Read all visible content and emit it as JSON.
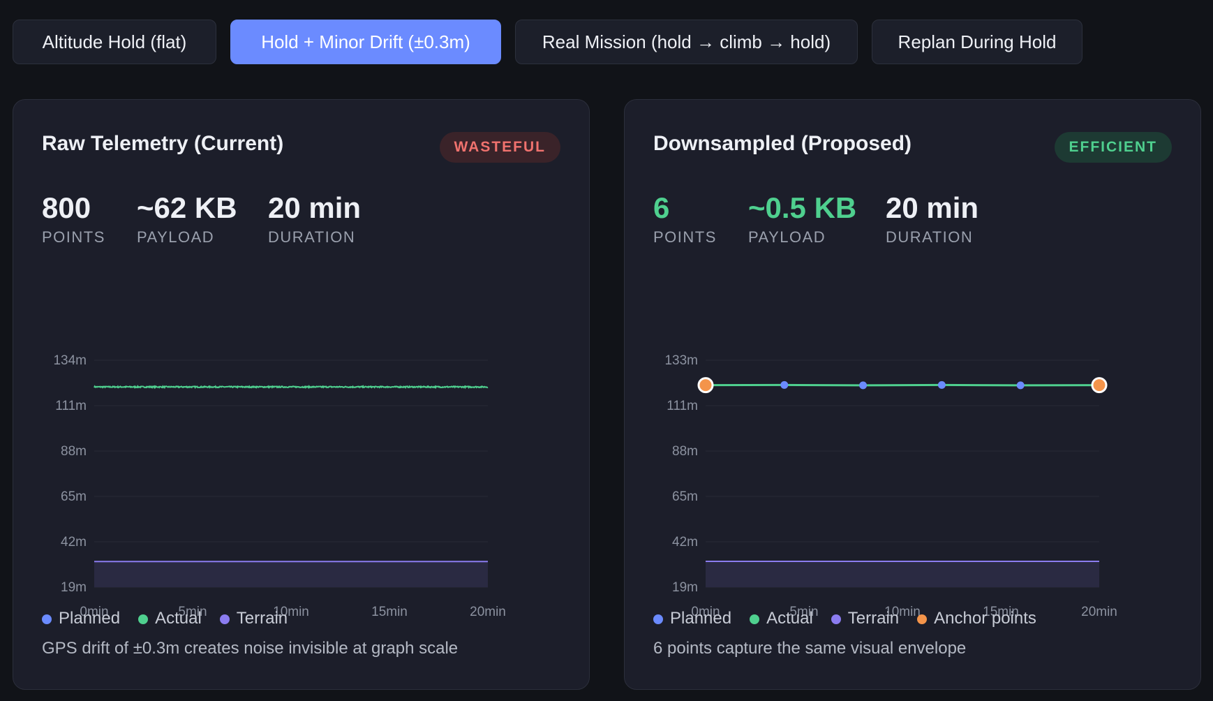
{
  "tabs": [
    {
      "label": "Altitude Hold (flat)",
      "active": false
    },
    {
      "label": "Hold + Minor Drift (±0.3m)",
      "active": true
    },
    {
      "label": "Real Mission (hold → climb → hold)",
      "active": false
    },
    {
      "label": "Replan During Hold",
      "active": false
    }
  ],
  "colors": {
    "planned": "#6b8bff",
    "actual": "#4fd08f",
    "terrain": "#8b7cf0",
    "anchor": "#f4944a",
    "wasteful": "#f0726e",
    "efficient": "#4fd08f"
  },
  "panels": {
    "raw": {
      "title": "Raw Telemetry (Current)",
      "badge": "WASTEFUL",
      "stats": [
        {
          "value": "800",
          "label": "POINTS"
        },
        {
          "value": "~62 KB",
          "label": "PAYLOAD"
        },
        {
          "value": "20 min",
          "label": "DURATION"
        }
      ],
      "legend": [
        {
          "label": "Planned",
          "color": "planned"
        },
        {
          "label": "Actual",
          "color": "actual"
        },
        {
          "label": "Terrain",
          "color": "terrain"
        }
      ],
      "caption": "GPS drift of ±0.3m creates noise invisible at graph scale"
    },
    "downsampled": {
      "title": "Downsampled (Proposed)",
      "badge": "EFFICIENT",
      "stats": [
        {
          "value": "6",
          "label": "POINTS"
        },
        {
          "value": "~0.5 KB",
          "label": "PAYLOAD"
        },
        {
          "value": "20 min",
          "label": "DURATION"
        }
      ],
      "legend": [
        {
          "label": "Planned",
          "color": "planned"
        },
        {
          "label": "Actual",
          "color": "actual"
        },
        {
          "label": "Terrain",
          "color": "terrain"
        },
        {
          "label": "Anchor points",
          "color": "anchor"
        }
      ],
      "caption": "6 points capture the same visual envelope"
    }
  },
  "chart_data": [
    {
      "type": "line",
      "title": "Raw Telemetry (Current)",
      "xlabel": "",
      "ylabel": "",
      "xlim": [
        0,
        20
      ],
      "ylim": [
        19,
        134
      ],
      "x_ticks": [
        "0min",
        "5min",
        "10min",
        "15min",
        "20min"
      ],
      "y_ticks": [
        "134m",
        "111m",
        "88m",
        "65m",
        "42m",
        "19m"
      ],
      "grid": true,
      "series": [
        {
          "name": "Actual",
          "kind": "noisy",
          "points": 800,
          "x_range": [
            0,
            20
          ],
          "base": 120.5,
          "noise": 0.3
        },
        {
          "name": "Terrain",
          "kind": "area",
          "x": [
            0,
            20
          ],
          "y": [
            32,
            32
          ]
        }
      ]
    },
    {
      "type": "line",
      "title": "Downsampled (Proposed)",
      "xlabel": "",
      "ylabel": "",
      "xlim": [
        0,
        20
      ],
      "ylim": [
        19,
        133
      ],
      "x_ticks": [
        "0min",
        "5min",
        "10min",
        "15min",
        "20min"
      ],
      "y_ticks": [
        "133m",
        "111m",
        "88m",
        "65m",
        "42m",
        "19m"
      ],
      "grid": true,
      "series": [
        {
          "name": "Actual",
          "x": [
            0,
            4,
            8,
            12,
            16,
            20
          ],
          "y": [
            120.5,
            120.6,
            120.4,
            120.6,
            120.4,
            120.5
          ],
          "markers": [
            0,
            1,
            1,
            1,
            1,
            0
          ]
        },
        {
          "name": "Anchor points",
          "x": [
            0,
            20
          ],
          "y": [
            120.5,
            120.5
          ]
        },
        {
          "name": "Terrain",
          "kind": "area",
          "x": [
            0,
            20
          ],
          "y": [
            32,
            32
          ]
        }
      ]
    }
  ]
}
